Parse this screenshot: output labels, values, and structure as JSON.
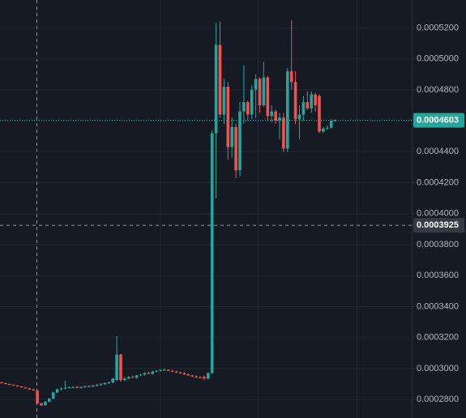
{
  "chart_data": {
    "type": "candlestick",
    "up_color": "#26a69a",
    "down_color": "#ef5350",
    "ylim": [
      0.000268,
      0.000538
    ],
    "yticks": [
      {
        "value": 0.00028,
        "label": "0.0002800"
      },
      {
        "value": 0.0003,
        "label": "0.0003000"
      },
      {
        "value": 0.00032,
        "label": "0.0003200"
      },
      {
        "value": 0.00034,
        "label": "0.0003400"
      },
      {
        "value": 0.00036,
        "label": "0.0003600"
      },
      {
        "value": 0.00038,
        "label": "0.0003800"
      },
      {
        "value": 0.0004,
        "label": "0.0004000"
      },
      {
        "value": 0.00042,
        "label": "0.0004200"
      },
      {
        "value": 0.00044,
        "label": "0.0004400"
      },
      {
        "value": 0.00046,
        "label": "0.0004600"
      },
      {
        "value": 0.00048,
        "label": "0.0004800"
      },
      {
        "value": 0.0005,
        "label": "0.0005000"
      },
      {
        "value": 0.00052,
        "label": "0.0005200"
      }
    ],
    "grid": true,
    "last_price": 0.0004603,
    "crosshair_price": 0.0003925,
    "open": [
      0.000291,
      0.0002905,
      0.00029,
      0.0002895,
      0.000289,
      0.0002884,
      0.0002878,
      0.0002872,
      0.0002865,
      0.0002858,
      0.0002775,
      0.0002762,
      0.0002785,
      0.0002805,
      0.0002845,
      0.0002865,
      0.000287,
      0.0002875,
      0.0002878,
      0.000288,
      0.0002876,
      0.000288,
      0.0002885,
      0.0002883,
      0.000289,
      0.0002895,
      0.0002898,
      0.0002905,
      0.000291,
      0.0002925,
      0.000309,
      0.0002925,
      0.0002935,
      0.0002945,
      0.000294,
      0.0002955,
      0.000296,
      0.000297,
      0.0002965,
      0.000298,
      0.0002985,
      0.000299,
      0.0002992,
      0.0002985,
      0.000298,
      0.0002975,
      0.000297,
      0.0002962,
      0.0002955,
      0.0002948,
      0.0002942,
      0.0002945,
      0.0002935,
      0.000297,
      0.000452,
      0.000509,
      0.000464,
      0.000482,
      0.000443,
      0.000456,
      0.000428,
      0.000466,
      0.000472,
      0.000464,
      0.00048,
      0.000487,
      0.00047,
      0.000488,
      0.000463,
      0.000466,
      0.00046,
      0.000462,
      0.000442,
      0.000492,
      0.000485,
      0.000461,
      0.000464,
      0.000472,
      0.000468,
      0.000477,
      0.000476,
      0.000453,
      0.000455,
      0.0004555,
      0.00046
    ],
    "high": [
      0.0002915,
      0.0002908,
      0.0002902,
      0.0002897,
      0.0002892,
      0.0002886,
      0.000288,
      0.0002874,
      0.0002867,
      0.000286,
      0.0002778,
      0.000279,
      0.000281,
      0.000285,
      0.000287,
      0.000288,
      0.000292,
      0.0002885,
      0.0002885,
      0.0002888,
      0.0002884,
      0.000289,
      0.0002892,
      0.0002895,
      0.00029,
      0.0002905,
      0.000291,
      0.0002915,
      0.000294,
      0.000321,
      0.0003095,
      0.0002945,
      0.000295,
      0.0002955,
      0.000296,
      0.0002965,
      0.0002975,
      0.000298,
      0.0002985,
      0.000299,
      0.0002995,
      0.0002998,
      0.0002995,
      0.000299,
      0.0002985,
      0.000298,
      0.0002975,
      0.0002968,
      0.000296,
      0.0002955,
      0.000295,
      0.0002955,
      0.0002975,
      0.000454,
      0.000523,
      0.000524,
      0.000487,
      0.000485,
      0.000462,
      0.000458,
      0.000472,
      0.000496,
      0.000473,
      0.000483,
      0.00049,
      0.000488,
      0.000498,
      0.000489,
      0.00047,
      0.000467,
      0.000465,
      0.000465,
      0.000494,
      0.000525,
      0.000492,
      0.00047,
      0.000476,
      0.000479,
      0.000479,
      0.000478,
      0.000477,
      0.000456,
      0.000457,
      0.000461,
      0.0004608
    ],
    "low": [
      0.0002905,
      0.0002898,
      0.0002892,
      0.0002888,
      0.0002882,
      0.0002876,
      0.000287,
      0.0002862,
      0.0002856,
      0.000277,
      0.0002755,
      0.000276,
      0.0002782,
      0.00028,
      0.000284,
      0.000286,
      0.0002865,
      0.000287,
      0.0002872,
      0.0002874,
      0.000287,
      0.0002876,
      0.000288,
      0.000288,
      0.0002885,
      0.000289,
      0.0002894,
      0.00029,
      0.0002905,
      0.000292,
      0.0002915,
      0.0002918,
      0.000293,
      0.0002938,
      0.0002935,
      0.000295,
      0.0002955,
      0.0002962,
      0.000296,
      0.0002975,
      0.000298,
      0.0002984,
      0.0002982,
      0.0002975,
      0.000297,
      0.0002965,
      0.0002958,
      0.0002952,
      0.0002945,
      0.0002938,
      0.0002935,
      0.0002928,
      0.000293,
      0.0002965,
      0.00041,
      0.000462,
      0.000458,
      0.000435,
      0.000436,
      0.000423,
      0.000424,
      0.000458,
      0.00046,
      0.000461,
      0.000462,
      0.000465,
      0.000469,
      0.00046,
      0.000459,
      0.000458,
      0.000448,
      0.00044,
      0.00044,
      0.00048,
      0.000458,
      0.000448,
      0.00046,
      0.000467,
      0.000465,
      0.000466,
      0.000452,
      0.000452,
      0.000454,
      0.000455,
      0.0004595
    ],
    "close": [
      0.0002905,
      0.00029,
      0.0002895,
      0.000289,
      0.0002884,
      0.0002878,
      0.0002872,
      0.0002865,
      0.0002858,
      0.0002775,
      0.0002762,
      0.0002785,
      0.0002805,
      0.0002845,
      0.0002865,
      0.000287,
      0.0002875,
      0.0002878,
      0.000288,
      0.0002876,
      0.000288,
      0.0002885,
      0.0002883,
      0.000289,
      0.0002895,
      0.0002898,
      0.0002905,
      0.000291,
      0.0002935,
      0.000309,
      0.0002925,
      0.0002935,
      0.0002945,
      0.000294,
      0.0002955,
      0.000296,
      0.000297,
      0.0002965,
      0.000298,
      0.0002985,
      0.000299,
      0.0002992,
      0.0002985,
      0.000298,
      0.0002975,
      0.000297,
      0.0002962,
      0.0002955,
      0.0002948,
      0.0002942,
      0.000294,
      0.0002935,
      0.000297,
      0.000452,
      0.000509,
      0.000464,
      0.000482,
      0.000443,
      0.000456,
      0.000428,
      0.000466,
      0.000472,
      0.000464,
      0.00048,
      0.000487,
      0.00047,
      0.000488,
      0.000463,
      0.000466,
      0.00046,
      0.000462,
      0.000442,
      0.000492,
      0.000485,
      0.000461,
      0.000464,
      0.000472,
      0.000468,
      0.000477,
      0.00047,
      0.000453,
      0.000455,
      0.0004555,
      0.00046,
      0.0004603
    ]
  }
}
